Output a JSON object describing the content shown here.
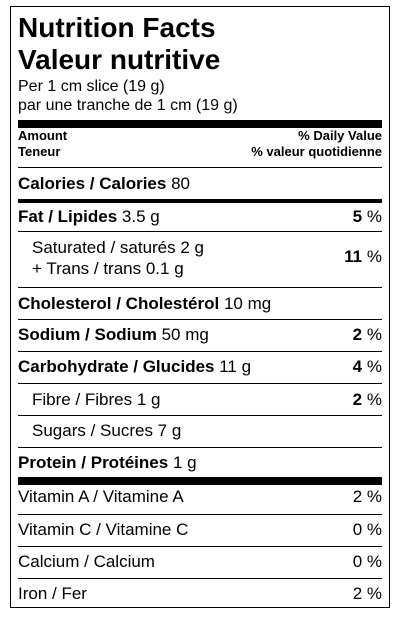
{
  "title_en": "Nutrition Facts",
  "title_fr": "Valeur nutritive",
  "serving_en": "Per 1 cm slice (19 g)",
  "serving_fr": "par une tranche de 1 cm (19 g)",
  "header": {
    "amount_en": "Amount",
    "amount_fr": "Teneur",
    "dv_en": "% Daily Value",
    "dv_fr": "% valeur quotidienne"
  },
  "calories": {
    "label": "Calories / Calories",
    "amount": "80"
  },
  "fat": {
    "label": "Fat / Lipides",
    "amount": "3.5 g",
    "dv": "5",
    "pct": "%"
  },
  "saturated": {
    "label": "Saturated / saturés 2 g",
    "label2": "+ Trans / trans 0.1 g",
    "dv": "11",
    "pct": "%"
  },
  "cholesterol": {
    "label": "Cholesterol / Cholestérol",
    "amount": "10 mg"
  },
  "sodium": {
    "label": "Sodium / Sodium",
    "amount": "50 mg",
    "dv": "2",
    "pct": "%"
  },
  "carbohydrate": {
    "label": "Carbohydrate / Glucides",
    "amount": "11 g",
    "dv": "4",
    "pct": "%"
  },
  "fibre": {
    "label": "Fibre / Fibres 1 g",
    "dv": "2",
    "pct": "%"
  },
  "sugars": {
    "label": "Sugars / Sucres 7 g"
  },
  "protein": {
    "label": "Protein / Protéines",
    "amount": "1 g"
  },
  "vitamins": [
    {
      "label": "Vitamin A / Vitamine A",
      "dv": "2 %"
    },
    {
      "label": "Vitamin C / Vitamine C",
      "dv": "0 %"
    },
    {
      "label": "Calcium / Calcium",
      "dv": "0 %"
    },
    {
      "label": "Iron / Fer",
      "dv": "2 %"
    }
  ]
}
